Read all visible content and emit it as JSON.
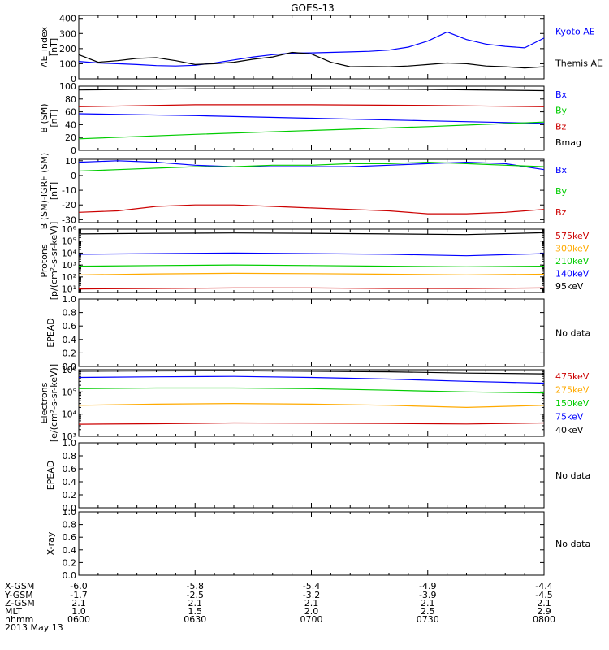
{
  "title": "GOES-13",
  "chart_data": [
    {
      "id": "ae",
      "type": "line",
      "ylabel": [
        "AE_index",
        "[nT]"
      ],
      "ylim": [
        0,
        420
      ],
      "scale": "linear",
      "yticks": [
        0,
        100,
        200,
        300,
        400
      ],
      "legend": [
        {
          "label": "Kyoto AE",
          "color": "#0000ff"
        },
        {
          "label": "Themis AE",
          "color": "#000000"
        }
      ],
      "x": [
        0,
        5,
        10,
        15,
        20,
        25,
        30,
        35,
        40,
        45,
        50,
        55,
        60,
        65,
        70,
        75,
        80,
        85,
        90,
        95,
        100,
        105,
        110,
        115,
        120
      ],
      "series": [
        {
          "name": "Kyoto AE",
          "color": "#0000ff",
          "values": [
            115,
            105,
            100,
            95,
            88,
            85,
            90,
            105,
            125,
            145,
            160,
            170,
            172,
            175,
            178,
            182,
            190,
            210,
            250,
            310,
            260,
            230,
            215,
            205,
            270
          ]
        },
        {
          "name": "Themis AE",
          "color": "#000000",
          "values": [
            160,
            110,
            120,
            135,
            140,
            120,
            95,
            100,
            110,
            130,
            145,
            175,
            165,
            110,
            80,
            82,
            80,
            85,
            95,
            105,
            100,
            85,
            80,
            72,
            80
          ]
        }
      ]
    },
    {
      "id": "bsm",
      "type": "line",
      "ylabel": [
        "B (SM)",
        "[nT]"
      ],
      "ylim": [
        0,
        100
      ],
      "scale": "linear",
      "yticks": [
        0,
        20,
        40,
        60,
        80,
        100
      ],
      "legend": [
        {
          "label": "Bx",
          "color": "#0000ff"
        },
        {
          "label": "By",
          "color": "#00cc00"
        },
        {
          "label": "Bz",
          "color": "#cc0000"
        },
        {
          "label": "Bmag",
          "color": "#000000"
        }
      ],
      "x": [
        0,
        30,
        60,
        90,
        120
      ],
      "series": [
        {
          "name": "Bx",
          "color": "#0000ff",
          "values": [
            57,
            54,
            50,
            46,
            42
          ]
        },
        {
          "name": "By",
          "color": "#00cc00",
          "values": [
            18,
            25,
            31,
            37,
            44
          ]
        },
        {
          "name": "Bz",
          "color": "#cc0000",
          "values": [
            68,
            71,
            71,
            70,
            68
          ]
        },
        {
          "name": "Bmag",
          "color": "#000000",
          "values": [
            94,
            96,
            96,
            95,
            93
          ]
        }
      ]
    },
    {
      "id": "bigrf",
      "type": "line",
      "ylabel": [
        "B (SM)-IGRF (SM)",
        "[nT]"
      ],
      "ylim": [
        -32,
        11
      ],
      "scale": "linear",
      "yticks": [
        -30,
        -20,
        -10,
        0,
        10
      ],
      "legend": [
        {
          "label": "Bx",
          "color": "#0000ff"
        },
        {
          "label": "By",
          "color": "#00cc00"
        },
        {
          "label": "Bz",
          "color": "#cc0000"
        }
      ],
      "x": [
        0,
        10,
        20,
        30,
        40,
        50,
        60,
        70,
        80,
        90,
        100,
        110,
        120
      ],
      "series": [
        {
          "name": "Bx",
          "color": "#0000ff",
          "values": [
            9,
            10,
            9,
            7,
            6,
            6,
            6,
            6,
            7,
            8,
            9,
            8,
            4
          ]
        },
        {
          "name": "By",
          "color": "#00cc00",
          "values": [
            3,
            4,
            5,
            6,
            6,
            7,
            7,
            8,
            8,
            9,
            8,
            7,
            6
          ]
        },
        {
          "name": "Bz",
          "color": "#cc0000",
          "values": [
            -25,
            -24,
            -21,
            -20,
            -20,
            -21,
            -22,
            -23,
            -24,
            -26,
            -26,
            -25,
            -23
          ]
        }
      ]
    },
    {
      "id": "protons",
      "type": "line",
      "ylabel": [
        "Protons",
        "[p/(cm²-s-sr-keV)]"
      ],
      "ylim": [
        5,
        1000000
      ],
      "scale": "log",
      "yticks": [
        10,
        100,
        1000,
        10000,
        100000,
        1000000
      ],
      "yticklabels": [
        "10¹",
        "10²",
        "10³",
        "10⁴",
        "10⁵",
        "10⁶"
      ],
      "legend": [
        {
          "label": "575keV",
          "color": "#cc0000"
        },
        {
          "label": "300keV",
          "color": "#ffaa00"
        },
        {
          "label": "210keV",
          "color": "#00cc00"
        },
        {
          "label": "140keV",
          "color": "#0000ff"
        },
        {
          "label": "95keV",
          "color": "#000000"
        }
      ],
      "x": [
        0,
        20,
        40,
        60,
        80,
        100,
        120
      ],
      "series": [
        {
          "name": "575keV",
          "color": "#cc0000",
          "values": [
            10,
            11,
            12,
            12,
            11,
            11,
            12
          ]
        },
        {
          "name": "300keV",
          "color": "#ffaa00",
          "values": [
            150,
            180,
            200,
            190,
            170,
            150,
            170
          ]
        },
        {
          "name": "210keV",
          "color": "#00cc00",
          "values": [
            800,
            900,
            1000,
            900,
            800,
            700,
            800
          ]
        },
        {
          "name": "140keV",
          "color": "#0000ff",
          "values": [
            8000,
            9000,
            10000,
            9000,
            8000,
            6000,
            9000
          ]
        },
        {
          "name": "95keV",
          "color": "#000000",
          "values": [
            400000,
            450000,
            480000,
            450000,
            400000,
            350000,
            500000
          ]
        }
      ]
    },
    {
      "id": "epead1",
      "type": "line",
      "ylabel": [
        "EPEAD",
        ""
      ],
      "ylim": [
        0,
        1
      ],
      "scale": "linear",
      "yticks": [
        0,
        0.2,
        0.4,
        0.6,
        0.8,
        1.0
      ],
      "yticklabels": [
        "0.0",
        "0.2",
        "0.4",
        "0.6",
        "0.8",
        "1.0"
      ],
      "nodata": "No data",
      "legend": [],
      "x": [],
      "series": []
    },
    {
      "id": "electrons",
      "type": "line",
      "ylabel": [
        "Electrons",
        "[e/(cm²-s-sr-keV)]"
      ],
      "ylim": [
        1000,
        1000000
      ],
      "scale": "log",
      "yticks": [
        1000,
        10000,
        100000,
        1000000
      ],
      "yticklabels": [
        "10³",
        "10⁴",
        "10⁵",
        "10⁶"
      ],
      "legend": [
        {
          "label": "475keV",
          "color": "#cc0000"
        },
        {
          "label": "275keV",
          "color": "#ffaa00"
        },
        {
          "label": "150keV",
          "color": "#00cc00"
        },
        {
          "label": "75keV",
          "color": "#0000ff"
        },
        {
          "label": "40keV",
          "color": "#000000"
        }
      ],
      "x": [
        0,
        20,
        40,
        60,
        80,
        100,
        120
      ],
      "series": [
        {
          "name": "475keV",
          "color": "#cc0000",
          "values": [
            3500,
            3700,
            4000,
            3900,
            3800,
            3600,
            4000
          ]
        },
        {
          "name": "275keV",
          "color": "#ffaa00",
          "values": [
            25000,
            28000,
            30000,
            28000,
            25000,
            20000,
            25000
          ]
        },
        {
          "name": "150keV",
          "color": "#00cc00",
          "values": [
            140000,
            150000,
            150000,
            140000,
            120000,
            100000,
            90000
          ]
        },
        {
          "name": "75keV",
          "color": "#0000ff",
          "values": [
            450000,
            480000,
            500000,
            450000,
            380000,
            300000,
            250000
          ]
        },
        {
          "name": "40keV",
          "color": "#000000",
          "values": [
            850000,
            880000,
            900000,
            850000,
            800000,
            700000,
            650000
          ]
        }
      ]
    },
    {
      "id": "epead2",
      "type": "line",
      "ylabel": [
        "EPEAD",
        ""
      ],
      "ylim": [
        0,
        1
      ],
      "scale": "linear",
      "yticks": [
        0,
        0.2,
        0.4,
        0.6,
        0.8,
        1.0
      ],
      "yticklabels": [
        "0.0",
        "0.2",
        "0.4",
        "0.6",
        "0.8",
        "1.0"
      ],
      "nodata": "No data",
      "legend": [],
      "x": [],
      "series": []
    },
    {
      "id": "xray",
      "type": "line",
      "ylabel": [
        "X-ray",
        ""
      ],
      "ylim": [
        0,
        1
      ],
      "scale": "linear",
      "yticks": [
        0,
        0.2,
        0.4,
        0.6,
        0.8,
        1.0
      ],
      "yticklabels": [
        "0.0",
        "0.2",
        "0.4",
        "0.6",
        "0.8",
        "1.0"
      ],
      "nodata": "No data",
      "legend": [],
      "x": [],
      "series": []
    }
  ],
  "footer": {
    "row_labels": [
      "X-GSM",
      "Y-GSM",
      "Z-GSM",
      "MLT",
      "hhmm"
    ],
    "columns": [
      [
        "-6.0",
        "-1.7",
        "2.1",
        "1.0",
        "0600"
      ],
      [
        "-5.8",
        "-2.5",
        "2.1",
        "1.5",
        "0630"
      ],
      [
        "-5.4",
        "-3.2",
        "2.1",
        "2.0",
        "0700"
      ],
      [
        "-4.9",
        "-3.9",
        "2.1",
        "2.5",
        "0730"
      ],
      [
        "-4.4",
        "-4.5",
        "2.1",
        "2.9",
        "0800"
      ]
    ],
    "date": "2013 May 13"
  }
}
